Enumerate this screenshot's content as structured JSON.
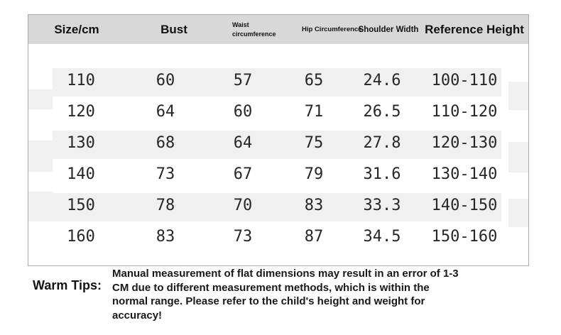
{
  "table": {
    "headers": {
      "size": "Size/cm",
      "bust": "Bust",
      "waist": "Waist circumference",
      "hip": "Hip Circumference",
      "shoulder": "Shoulder Width",
      "reference": "Reference Height"
    },
    "rows": [
      {
        "size": "110",
        "bust": "60",
        "waist": "57",
        "hip": "65",
        "shoulder": "24.6",
        "height": "100-110"
      },
      {
        "size": "120",
        "bust": "64",
        "waist": "60",
        "hip": "71",
        "shoulder": "26.5",
        "height": "110-120"
      },
      {
        "size": "130",
        "bust": "68",
        "waist": "64",
        "hip": "75",
        "shoulder": "27.8",
        "height": "120-130"
      },
      {
        "size": "140",
        "bust": "73",
        "waist": "67",
        "hip": "79",
        "shoulder": "31.6",
        "height": "130-140"
      },
      {
        "size": "150",
        "bust": "78",
        "waist": "70",
        "hip": "83",
        "shoulder": "33.3",
        "height": "140-150"
      },
      {
        "size": "160",
        "bust": "83",
        "waist": "73",
        "hip": "87",
        "shoulder": "34.5",
        "height": "150-160"
      }
    ]
  },
  "warm_tips": {
    "label": "Warm Tips:",
    "lines": [
      "Manual measurement of flat dimensions may result in an error of 1-3",
      "CM due to different measurement methods, which is within the",
      "normal range. Please refer to the child's height and weight for",
      "accuracy!"
    ]
  },
  "colors": {
    "header_bg": "#d8d8d8",
    "stripe_bg": "#f0f0f0",
    "frame_border": "#ababab",
    "text": "#1a1a1a"
  }
}
